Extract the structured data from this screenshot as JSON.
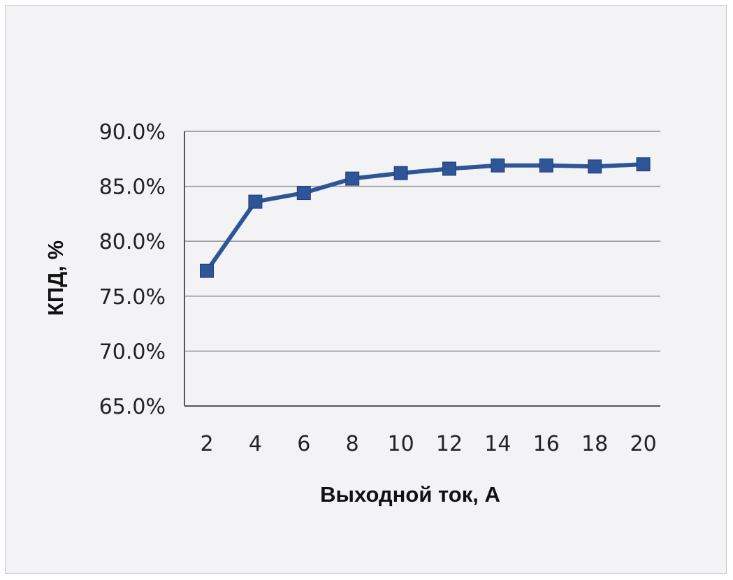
{
  "chart_data": {
    "type": "line",
    "title": "",
    "xlabel": "Выходной ток, А",
    "ylabel": "КПД, %",
    "x": [
      2,
      4,
      6,
      8,
      10,
      12,
      14,
      16,
      18,
      20
    ],
    "x_tick_labels": [
      "2",
      "4",
      "6",
      "8",
      "10",
      "12",
      "14",
      "16",
      "18",
      "20"
    ],
    "y_tick_labels": [
      "90.0%",
      "85.0%",
      "80.0%",
      "75.0%",
      "70.0%",
      "65.0%"
    ],
    "y_ticks": [
      90,
      85,
      80,
      75,
      70,
      65
    ],
    "ylim": [
      65,
      90
    ],
    "grid": "horizontal",
    "legend": "none",
    "series": [
      {
        "values": [
          77.3,
          83.6,
          84.4,
          85.7,
          86.2,
          86.6,
          86.9,
          86.9,
          86.8,
          87.0
        ],
        "color": "#2E5597"
      }
    ]
  }
}
